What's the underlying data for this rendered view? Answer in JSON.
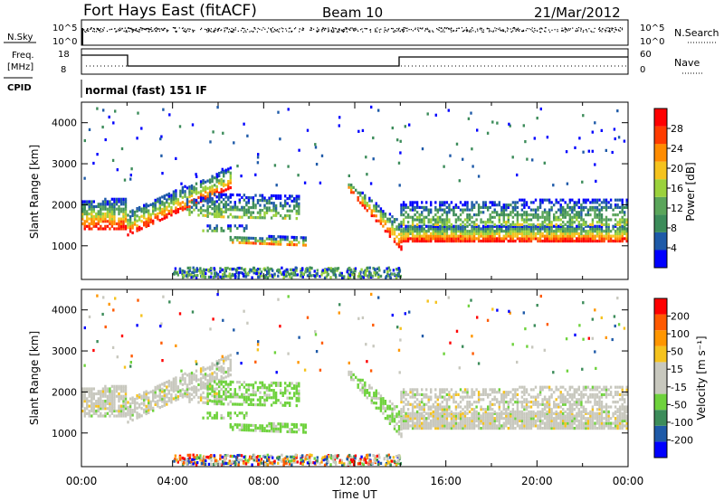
{
  "header": {
    "site": "Fort Hays East (fitACF)",
    "beam": "Beam 10",
    "date": "21/Mar/2012"
  },
  "top_strip": {
    "left_label": "N.Sky",
    "right_label": "N.Search",
    "ticks_left": [
      "10^5",
      "10^0"
    ],
    "ticks_right": [
      "10^5",
      "10^0"
    ]
  },
  "freq_strip": {
    "left_label_1": "Freq.",
    "left_label_2": "[MHz]",
    "ticks_left": [
      "18",
      "8"
    ],
    "right_label": "Nave",
    "ticks_right": [
      "60",
      "0"
    ]
  },
  "cpid": {
    "label": "CPID",
    "mode": "normal (fast) 151 IF"
  },
  "colors": {
    "power_scale": [
      "#0000ff",
      "#1e5aa8",
      "#3c8c5a",
      "#5aa55a",
      "#9bd23c",
      "#f5c31e",
      "#ff8c00",
      "#ff3c00",
      "#ff0000"
    ],
    "velocity_scale": [
      "#ff0000",
      "#ff5a00",
      "#ff9600",
      "#f5c31e",
      "#c8c8be",
      "#c8c8be",
      "#6ed23c",
      "#3c8c5a",
      "#1e5aa8",
      "#0000ff"
    ]
  },
  "chart_data": [
    {
      "type": "heatmap",
      "title": "Power",
      "xlabel": "Time UT",
      "ylabel": "Slant Range [km]",
      "x_ticks": [
        "00:00",
        "04:00",
        "08:00",
        "12:00",
        "16:00",
        "20:00",
        "00:00"
      ],
      "y_ticks": [
        1000,
        2000,
        3000,
        4000
      ],
      "ylim": [
        180,
        4500
      ],
      "colorbar_label": "Power [dB]",
      "colorbar_ticks": [
        "4",
        "8",
        "12",
        "16",
        "20",
        "24",
        "28"
      ],
      "echo_bands": [
        {
          "t_start": 0.0,
          "t_end": 2.0,
          "range_lo": 1400,
          "range_hi": 2200
        },
        {
          "t_start": 2.0,
          "t_end": 6.5,
          "range_lo": 1300,
          "range_hi": 2900
        },
        {
          "t_start": 4.5,
          "t_end": 9.5,
          "range_lo": 1700,
          "range_hi": 2300
        },
        {
          "t_start": 6.5,
          "t_end": 10.0,
          "range_lo": 1000,
          "range_hi": 1400
        },
        {
          "t_start": 11.7,
          "t_end": 14.0,
          "range_lo": 900,
          "range_hi": 2500
        },
        {
          "t_start": 14.0,
          "t_end": 24.0,
          "range_lo": 1100,
          "range_hi": 2100
        }
      ]
    },
    {
      "type": "heatmap",
      "title": "Velocity",
      "xlabel": "Time UT",
      "ylabel": "Slant Range [km]",
      "x_ticks": [
        "00:00",
        "04:00",
        "08:00",
        "12:00",
        "16:00",
        "20:00",
        "00:00"
      ],
      "y_ticks": [
        1000,
        2000,
        3000,
        4000
      ],
      "ylim": [
        180,
        4500
      ],
      "colorbar_label": "Velocity [m s⁻¹]",
      "colorbar_ticks": [
        "200",
        "100",
        "50",
        "15",
        "-15",
        "-50",
        "-100",
        "-200"
      ]
    }
  ]
}
